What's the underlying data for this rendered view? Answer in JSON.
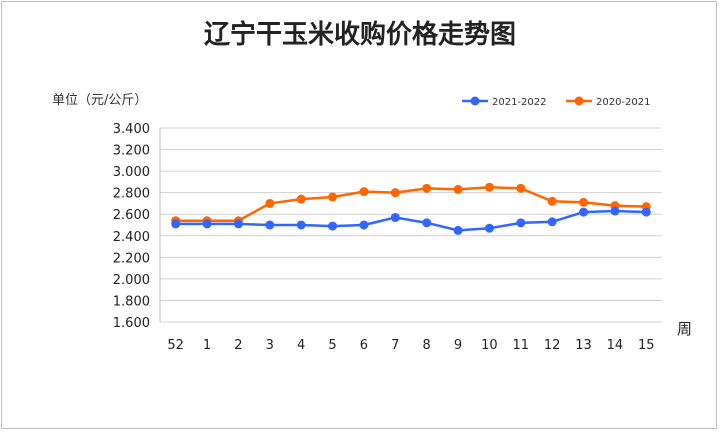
{
  "chart_data": {
    "type": "line",
    "title": "辽宁干玉米收购价格走势图",
    "ylabel": "单位（元/公斤）",
    "xlabel": "周",
    "categories": [
      "52",
      "1",
      "2",
      "3",
      "4",
      "5",
      "6",
      "7",
      "8",
      "9",
      "10",
      "11",
      "12",
      "13",
      "14",
      "15"
    ],
    "ylim": [
      1.6,
      3.4
    ],
    "yticks": [
      "3.400",
      "3.200",
      "3.000",
      "2.800",
      "2.600",
      "2.400",
      "2.200",
      "2.000",
      "1.800",
      "1.600"
    ],
    "grid": true,
    "legend_position": "top-right",
    "series": [
      {
        "name": "2021-2022",
        "color": "#3366ff",
        "values": [
          2.51,
          2.51,
          2.51,
          2.5,
          2.5,
          2.49,
          2.5,
          2.57,
          2.52,
          2.45,
          2.47,
          2.52,
          2.53,
          2.62,
          2.63,
          2.62
        ]
      },
      {
        "name": "2020-2021",
        "color": "#ff6600",
        "values": [
          2.54,
          2.54,
          2.54,
          2.7,
          2.74,
          2.76,
          2.81,
          2.8,
          2.84,
          2.83,
          2.85,
          2.84,
          2.72,
          2.71,
          2.68,
          2.67
        ]
      }
    ]
  }
}
